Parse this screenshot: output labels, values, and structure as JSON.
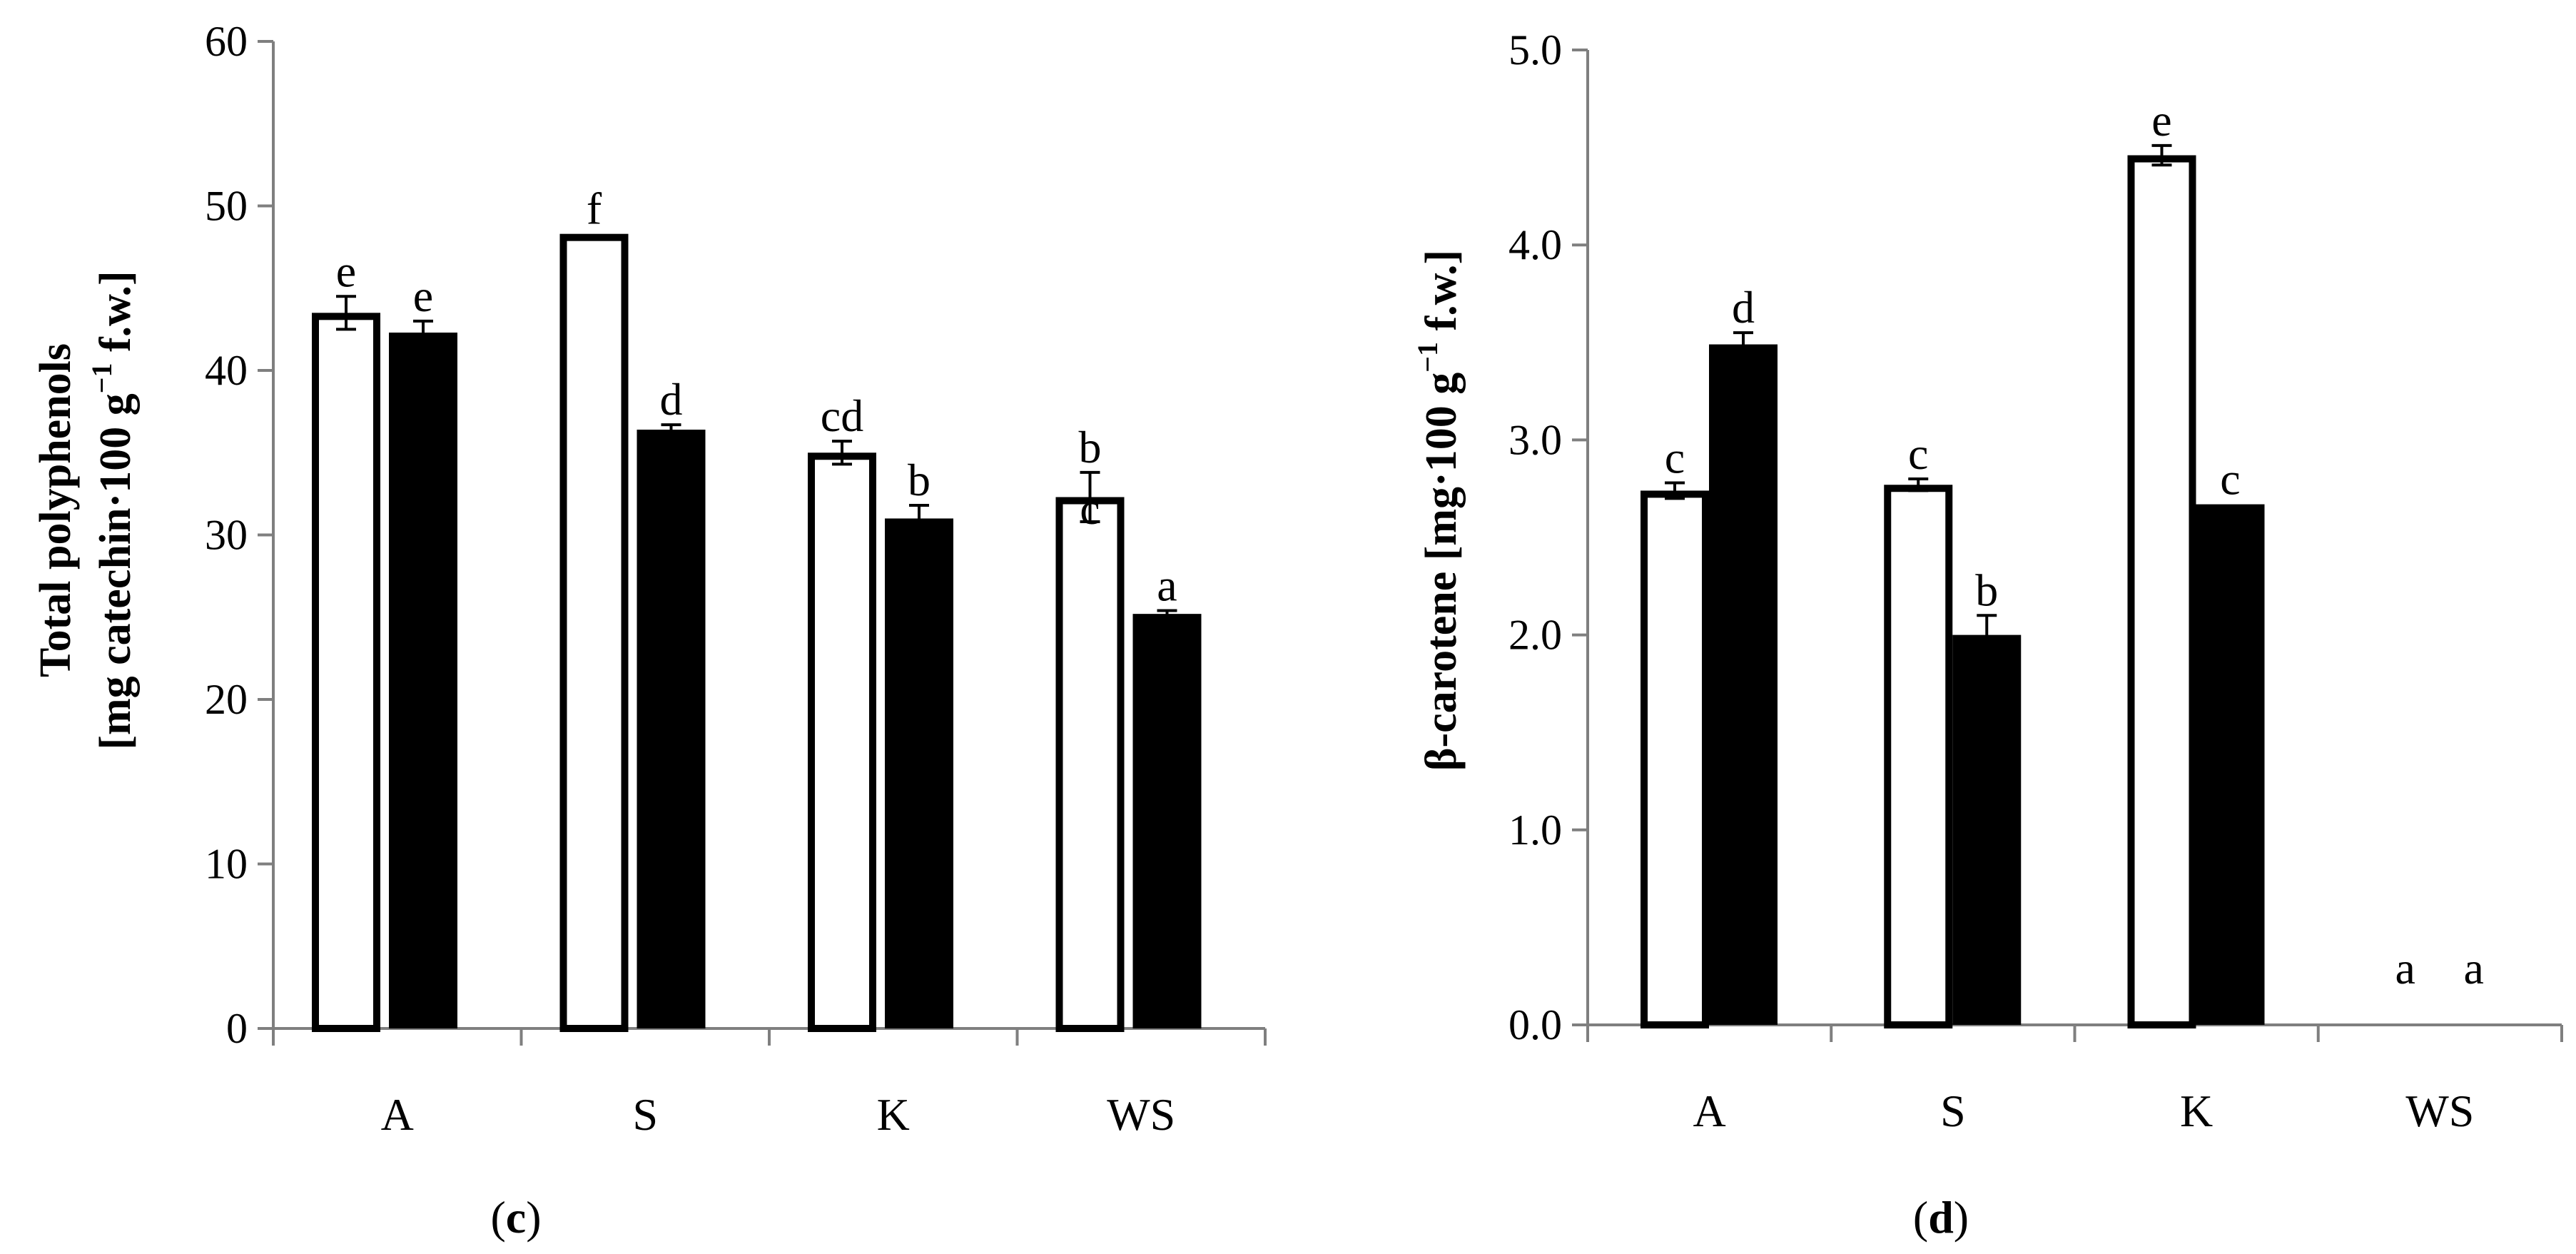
{
  "chart_data": [
    {
      "type": "bar",
      "panel_label": "c",
      "categories": [
        "A",
        "S",
        "K",
        "WS"
      ],
      "series": [
        {
          "name": "open bars",
          "values": [
            43.5,
            48.3,
            35.0,
            32.3
          ],
          "errors": [
            1.0,
            0.0,
            0.7,
            1.5
          ]
        },
        {
          "name": "filled bars",
          "values": [
            42.3,
            36.4,
            31.0,
            25.2
          ],
          "errors": [
            0.7,
            0.3,
            0.8,
            0.2
          ]
        }
      ],
      "letters": [
        [
          "e",
          "f",
          "cd",
          "b c"
        ],
        [
          "e",
          "d",
          "b",
          "a"
        ]
      ],
      "ylabel_line1": "Total polyphenols",
      "ylabel_line2_pre": "[mg catechin·100 g",
      "ylabel_sup": "−1",
      "ylabel_line2_post": " f.w.]",
      "ylim": [
        0,
        60
      ],
      "yticks": [
        "0",
        "10",
        "20",
        "30",
        "40",
        "50",
        "60"
      ],
      "grid": false
    },
    {
      "type": "bar",
      "panel_label": "d",
      "categories": [
        "A",
        "S",
        "K",
        "WS"
      ],
      "series": [
        {
          "name": "open bars",
          "values": [
            2.74,
            2.77,
            4.46,
            0.0
          ],
          "errors": [
            0.04,
            0.03,
            0.05,
            0.0
          ]
        },
        {
          "name": "filled bars",
          "values": [
            3.49,
            2.0,
            2.67,
            0.0
          ],
          "errors": [
            0.06,
            0.1,
            0.0,
            0.0
          ]
        }
      ],
      "letters": [
        [
          "c",
          "c",
          "e",
          "a"
        ],
        [
          "d",
          "b",
          "c",
          "a"
        ]
      ],
      "ylabel_line1": "β-carotene [mg·100 g",
      "ylabel_sup": "−1",
      "ylabel_line2_post": " f.w.]",
      "ylim": [
        0,
        5
      ],
      "yticks": [
        "0.0",
        "1.0",
        "2.0",
        "3.0",
        "4.0",
        "5.0"
      ],
      "grid": false
    }
  ]
}
